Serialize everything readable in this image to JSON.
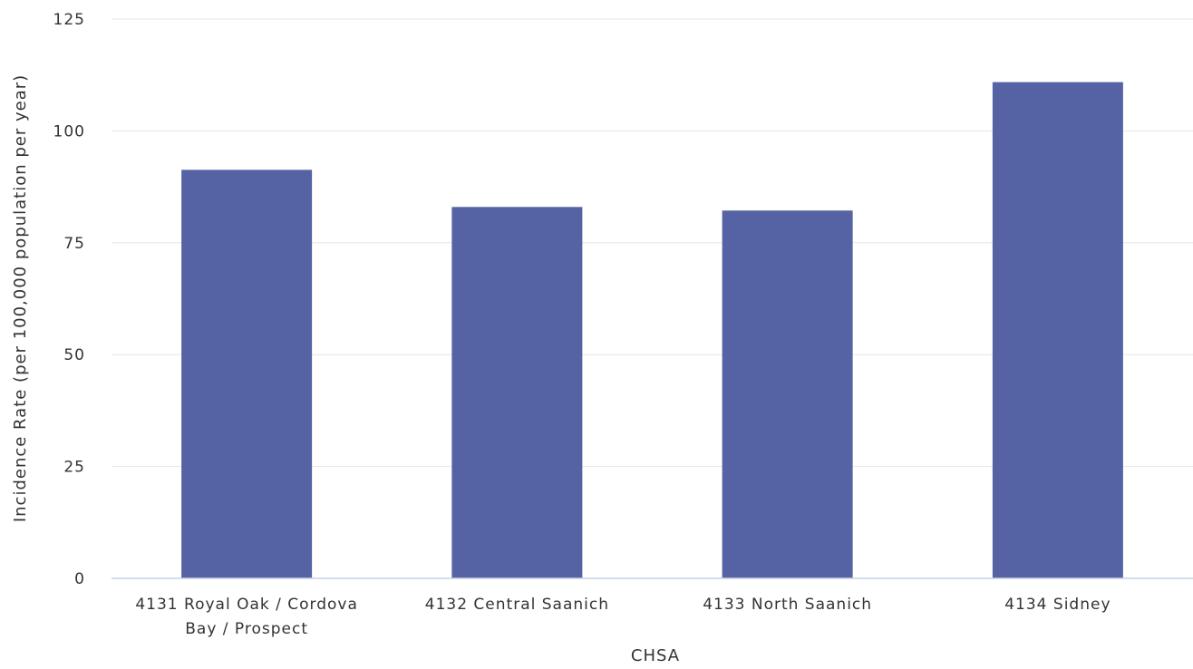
{
  "chart_data": {
    "type": "bar",
    "categories": [
      [
        "4131 Royal Oak / Cordova",
        "Bay / Prospect"
      ],
      [
        "4132 Central Saanich"
      ],
      [
        "4133 North Saanich"
      ],
      [
        "4134 Sidney"
      ]
    ],
    "values": [
      91.3,
      83.0,
      82.2,
      110.9
    ],
    "xlabel": "CHSA",
    "ylabel": "Incidence Rate (per 100,000 population per year)",
    "ylim": [
      0,
      125
    ],
    "yticks": [
      0,
      25,
      50,
      75,
      100,
      125
    ],
    "grid": true,
    "legend": "none",
    "colors": {
      "bar": "#5563a4",
      "grid": "#e6e6e6",
      "baseline": "#c7d2e6",
      "text": "#333333"
    }
  }
}
